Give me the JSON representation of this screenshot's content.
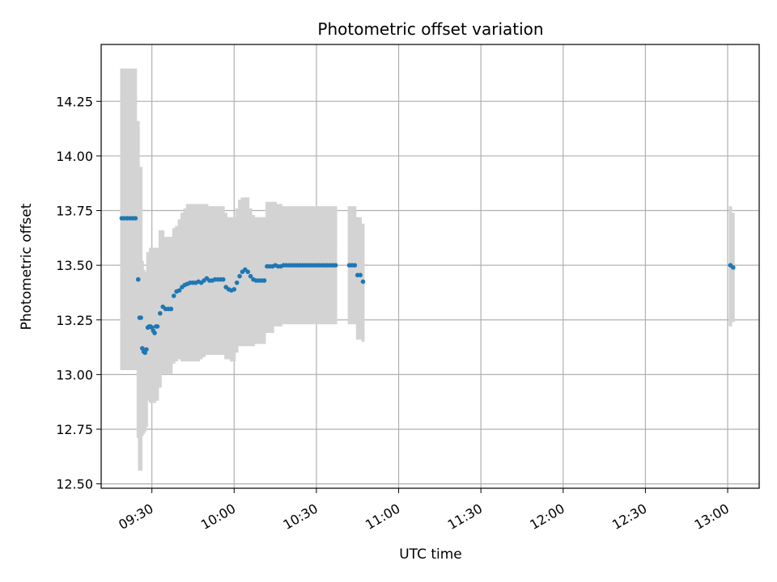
{
  "chart_data": {
    "type": "scatter",
    "title": "Photometric offset variation",
    "xlabel": "UTC time",
    "ylabel": "Photometric offset",
    "x_ticks": [
      "09:30",
      "10:00",
      "10:30",
      "11:00",
      "11:30",
      "12:00",
      "12:30",
      "13:00"
    ],
    "x_tick_minutes": [
      570,
      600,
      630,
      660,
      690,
      720,
      750,
      780
    ],
    "x_range_minutes": [
      551.5,
      791.5
    ],
    "y_ticks": [
      "12.50",
      "12.75",
      "13.00",
      "13.25",
      "13.50",
      "13.75",
      "14.00",
      "14.25"
    ],
    "y_tick_values": [
      12.5,
      12.75,
      13.0,
      13.25,
      13.5,
      13.75,
      14.0,
      14.25
    ],
    "ylim": [
      12.48,
      14.51
    ],
    "grid": true,
    "point_color": "#1f77b4",
    "errorbar_color": "#d3d3d3",
    "series": [
      {
        "x_minutes": [
          559,
          560,
          561,
          562,
          563,
          564,
          565,
          565.5,
          566,
          566.5,
          567,
          567.5,
          568,
          568.5,
          569,
          569.5,
          570,
          570.5,
          571,
          571.5,
          572,
          573,
          574,
          575,
          576,
          577,
          578,
          579,
          580,
          581,
          582,
          583,
          584,
          585,
          586,
          587,
          588,
          589,
          590,
          591,
          592,
          593,
          594,
          595,
          596,
          597,
          598,
          599,
          600,
          601,
          602,
          603,
          604,
          605,
          606,
          607,
          608,
          609,
          610,
          611,
          612,
          613,
          614,
          615,
          616,
          617,
          618,
          619,
          620,
          621,
          622,
          623,
          624,
          625,
          626,
          627,
          628,
          629,
          630,
          631,
          632,
          633,
          634,
          635,
          636,
          637,
          642,
          643,
          644,
          645,
          646,
          647,
          781,
          782
        ],
        "y": [
          13.715,
          13.715,
          13.715,
          13.715,
          13.715,
          13.715,
          13.435,
          13.26,
          13.26,
          13.12,
          13.105,
          13.1,
          13.115,
          13.215,
          13.22,
          13.22,
          13.215,
          13.2,
          13.19,
          13.22,
          13.22,
          13.28,
          13.31,
          13.3,
          13.3,
          13.3,
          13.36,
          13.38,
          13.385,
          13.4,
          13.41,
          13.415,
          13.42,
          13.42,
          13.42,
          13.425,
          13.42,
          13.43,
          13.44,
          13.43,
          13.43,
          13.435,
          13.435,
          13.435,
          13.435,
          13.4,
          13.39,
          13.385,
          13.39,
          13.42,
          13.45,
          13.47,
          13.48,
          13.47,
          13.45,
          13.435,
          13.43,
          13.43,
          13.43,
          13.43,
          13.495,
          13.495,
          13.495,
          13.5,
          13.495,
          13.495,
          13.5,
          13.5,
          13.5,
          13.5,
          13.5,
          13.5,
          13.5,
          13.5,
          13.5,
          13.5,
          13.5,
          13.5,
          13.5,
          13.5,
          13.5,
          13.5,
          13.5,
          13.5,
          13.5,
          13.5,
          13.5,
          13.5,
          13.5,
          13.455,
          13.455,
          13.425,
          13.5,
          13.49
        ],
        "err_low": [
          13.02,
          13.02,
          13.02,
          13.02,
          13.02,
          13.02,
          12.71,
          12.56,
          12.56,
          12.72,
          12.73,
          12.74,
          12.76,
          12.88,
          12.89,
          12.87,
          12.87,
          12.87,
          12.87,
          12.88,
          12.88,
          12.94,
          13.0,
          13.0,
          13.0,
          13.0,
          13.05,
          13.06,
          13.07,
          13.06,
          13.06,
          13.06,
          13.06,
          13.06,
          13.06,
          13.06,
          13.07,
          13.08,
          13.09,
          13.09,
          13.09,
          13.09,
          13.09,
          13.09,
          13.09,
          13.07,
          13.07,
          13.06,
          13.06,
          13.1,
          13.13,
          13.13,
          13.13,
          13.13,
          13.13,
          13.13,
          13.14,
          13.14,
          13.14,
          13.14,
          13.19,
          13.19,
          13.19,
          13.22,
          13.22,
          13.22,
          13.23,
          13.23,
          13.23,
          13.23,
          13.23,
          13.23,
          13.23,
          13.23,
          13.23,
          13.23,
          13.23,
          13.23,
          13.23,
          13.23,
          13.23,
          13.23,
          13.23,
          13.23,
          13.23,
          13.23,
          13.23,
          13.23,
          13.23,
          13.16,
          13.16,
          13.15,
          13.22,
          13.24
        ],
        "err_high": [
          14.4,
          14.4,
          14.4,
          14.4,
          14.4,
          14.4,
          14.16,
          13.95,
          13.95,
          13.52,
          13.48,
          13.47,
          13.46,
          13.56,
          13.56,
          13.58,
          13.58,
          13.58,
          13.58,
          13.58,
          13.58,
          13.66,
          13.66,
          13.63,
          13.63,
          13.63,
          13.67,
          13.68,
          13.71,
          13.74,
          13.76,
          13.78,
          13.78,
          13.78,
          13.78,
          13.78,
          13.78,
          13.78,
          13.78,
          13.77,
          13.77,
          13.77,
          13.77,
          13.77,
          13.77,
          13.74,
          13.72,
          13.72,
          13.72,
          13.76,
          13.8,
          13.81,
          13.81,
          13.81,
          13.76,
          13.73,
          13.72,
          13.72,
          13.72,
          13.72,
          13.79,
          13.79,
          13.79,
          13.79,
          13.78,
          13.78,
          13.77,
          13.77,
          13.77,
          13.77,
          13.77,
          13.77,
          13.77,
          13.77,
          13.77,
          13.77,
          13.77,
          13.77,
          13.77,
          13.77,
          13.77,
          13.77,
          13.77,
          13.77,
          13.77,
          13.77,
          13.77,
          13.77,
          13.77,
          13.72,
          13.72,
          13.69,
          13.77,
          13.74
        ]
      }
    ]
  }
}
